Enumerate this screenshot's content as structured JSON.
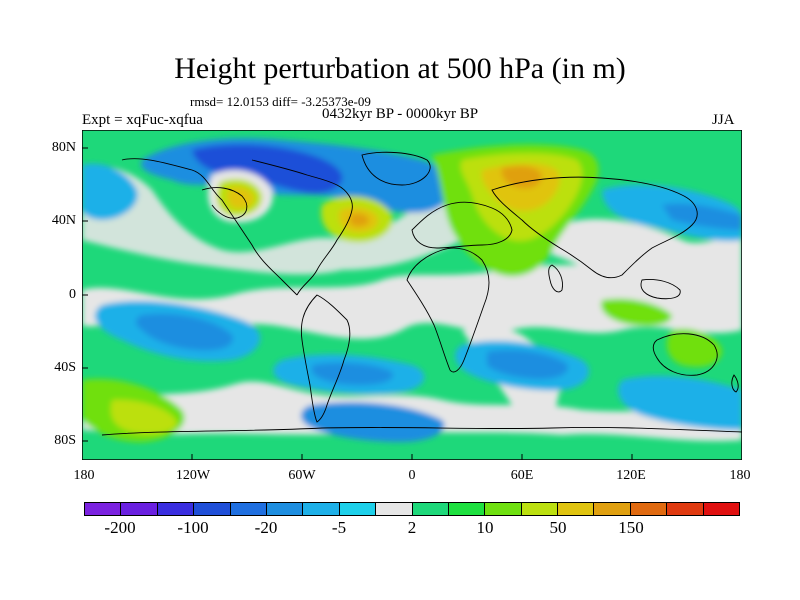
{
  "header": {
    "title": "Height perturbation at 500 hPa (in m)",
    "stats": "rmsd= 12.0153 diff= -3.25373e-09",
    "experiment": "Expt = xqFuc-xqfua",
    "period": "0432kyr BP - 0000kyr BP",
    "season": "JJA"
  },
  "axes": {
    "y_ticks": [
      "80N",
      "40N",
      "0",
      "40S",
      "80S"
    ],
    "x_ticks": [
      "180",
      "120W",
      "60W",
      "0",
      "60E",
      "120E",
      "180"
    ]
  },
  "colorbar": {
    "colors": [
      "#7b22e0",
      "#6a20e0",
      "#3a2ee0",
      "#1f4fd8",
      "#1f6fe0",
      "#1e8ee0",
      "#1eb0e8",
      "#1ed0ea",
      "#e6e6e6",
      "#1ed87a",
      "#1ee040",
      "#6fe010",
      "#bce010",
      "#e0c410",
      "#e0a010",
      "#e06a10",
      "#e03a10",
      "#e01010"
    ],
    "labels": [
      "-200",
      "-100",
      "-20",
      "-5",
      "2",
      "10",
      "50",
      "150"
    ]
  },
  "map_colors": {
    "ocean_background": "#1ed87a",
    "neutral": "#e6e6e6",
    "light_blue": "#1eb0e8",
    "blue": "#1e8ee0",
    "dark_blue": "#1f4fd8",
    "yellow_green": "#bce010",
    "orange": "#e0a010",
    "green": "#1ee040",
    "coastline": "#000000"
  }
}
